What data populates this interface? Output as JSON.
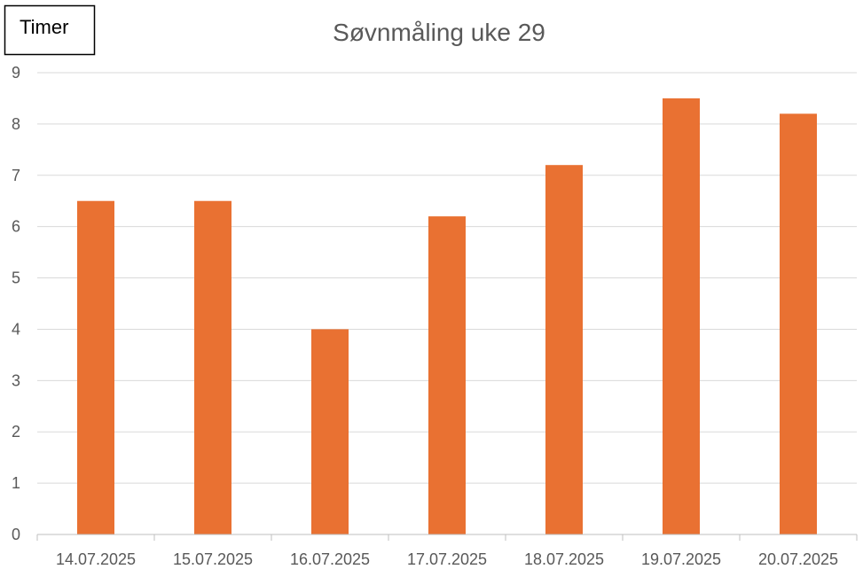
{
  "chart_data": {
    "type": "bar",
    "title": "Søvnmåling uke 29",
    "ylabel": "Timer",
    "xlabel": "",
    "categories": [
      "14.07.2025",
      "15.07.2025",
      "16.07.2025",
      "17.07.2025",
      "18.07.2025",
      "19.07.2025",
      "20.07.2025"
    ],
    "values": [
      6.5,
      6.5,
      4,
      6.2,
      7.2,
      8.5,
      8.2
    ],
    "ylim": [
      0,
      9
    ],
    "yticks": [
      0,
      1,
      2,
      3,
      4,
      5,
      6,
      7,
      8,
      9
    ],
    "grid": true,
    "legend": "none",
    "colors": {
      "bar": "#E97132",
      "grid": "#D9D9D9",
      "axis": "#BFBFBF",
      "text": "#595959"
    }
  }
}
